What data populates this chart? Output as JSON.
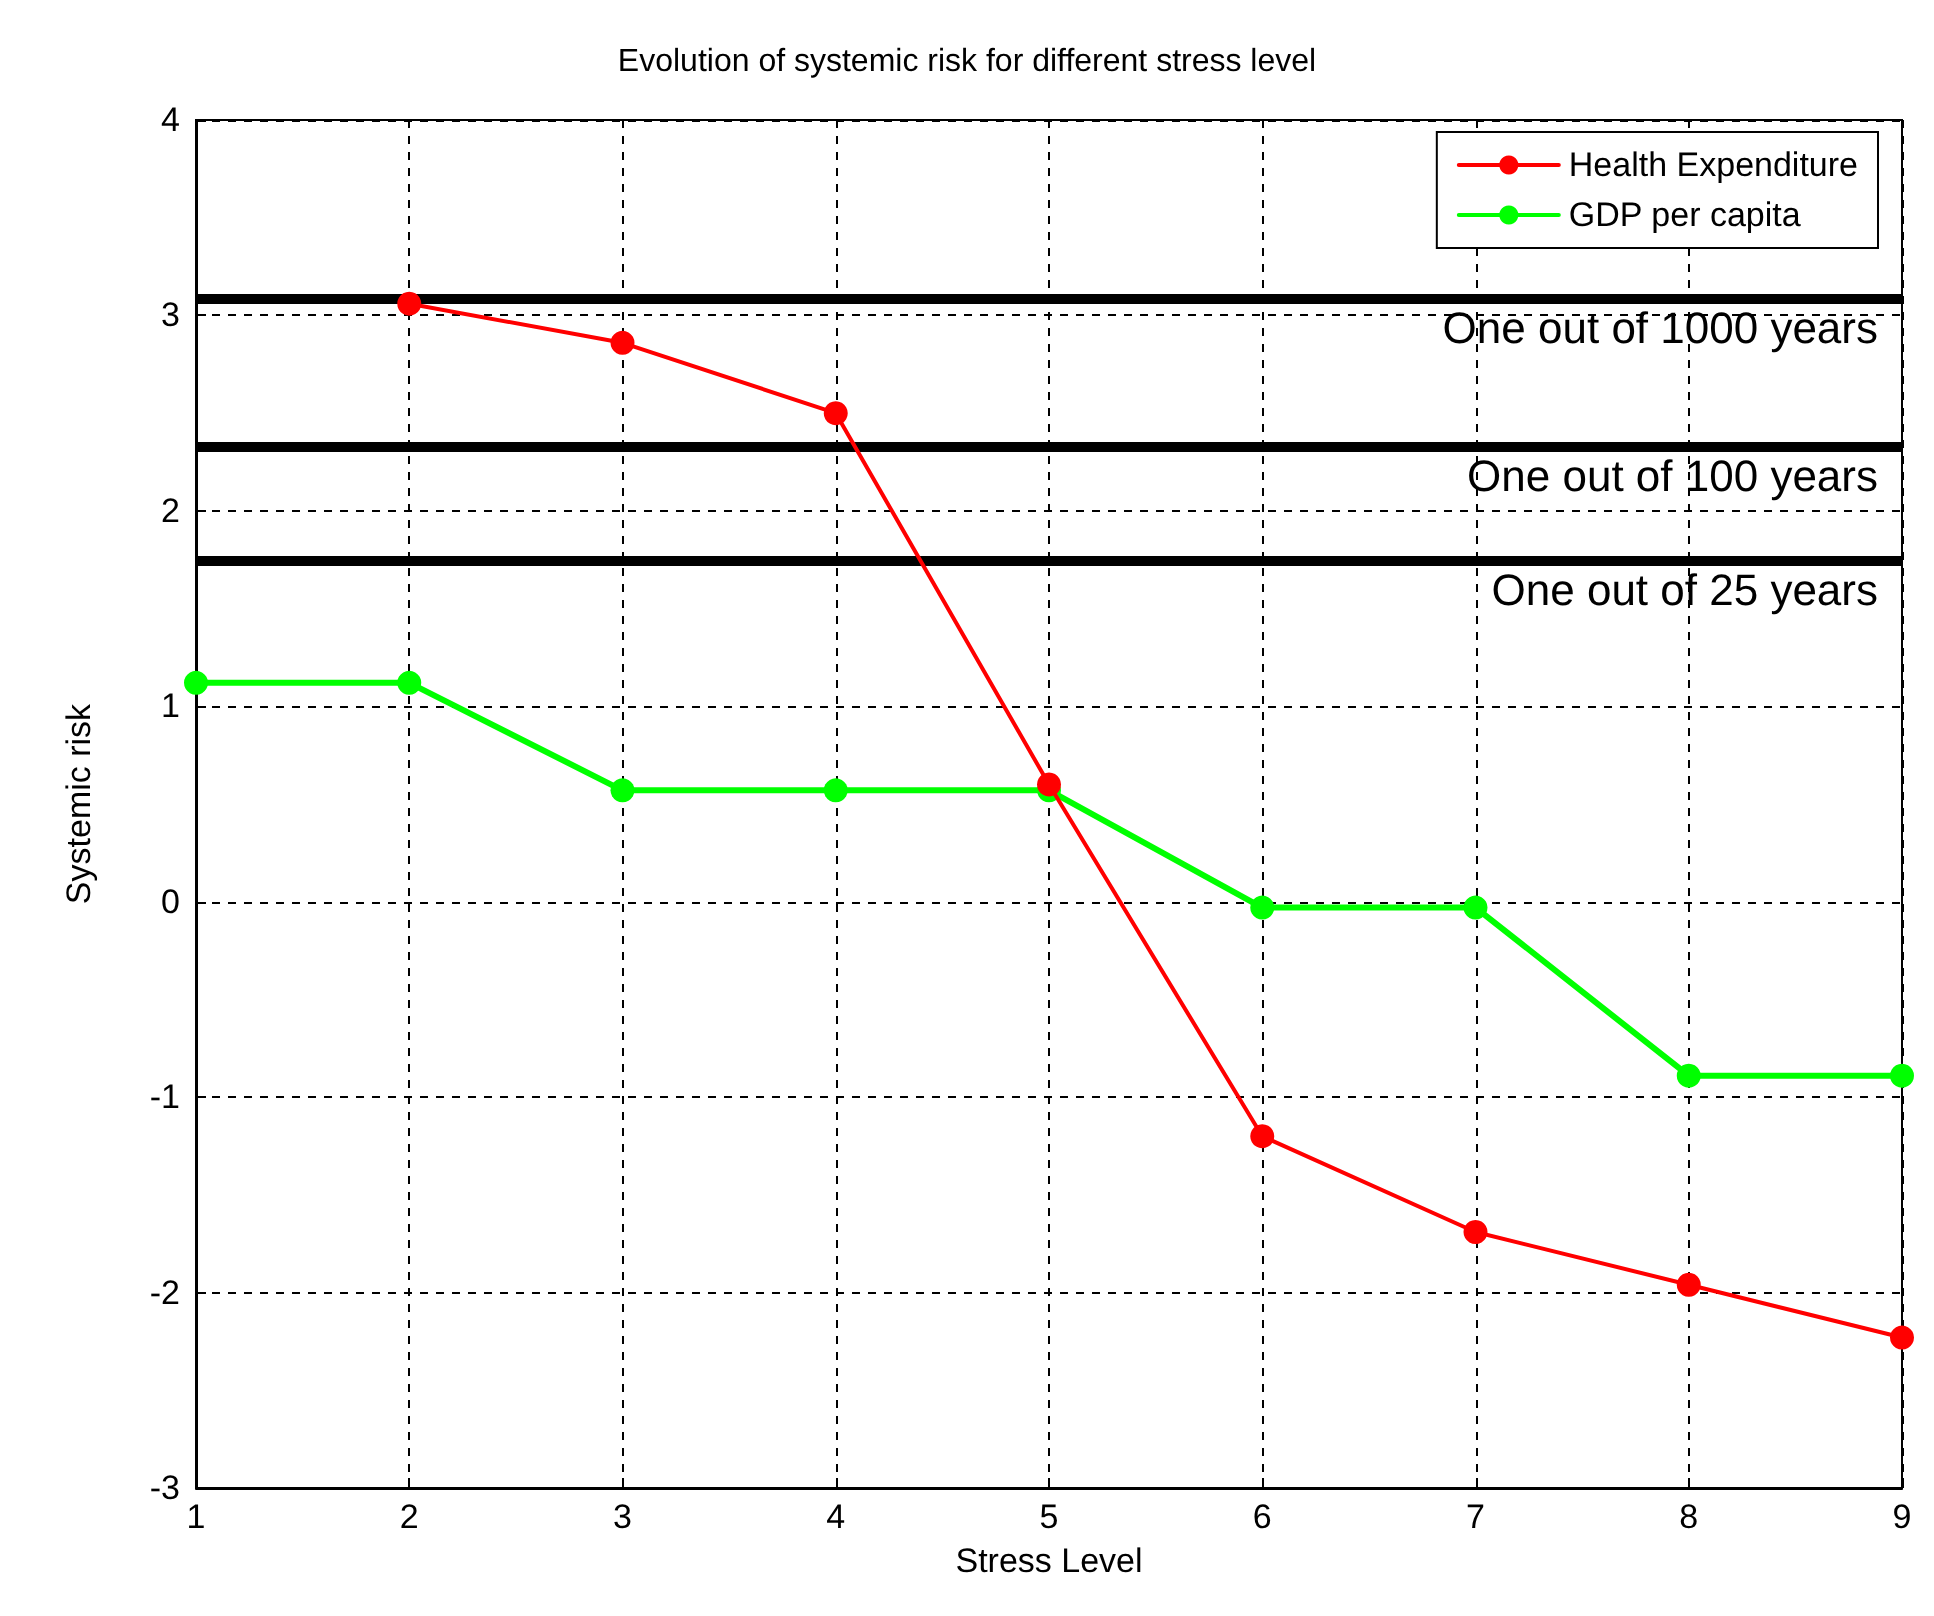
{
  "chart_data": {
    "type": "line",
    "title": "Evolution of systemic risk for different stress level",
    "xlabel": "Stress Level",
    "ylabel": "Systemic risk",
    "x": [
      1,
      2,
      3,
      4,
      5,
      6,
      7,
      8,
      9
    ],
    "series": [
      {
        "name": "Health Expenditure",
        "color": "#ff0000",
        "values": [
          null,
          3.06,
          2.86,
          2.5,
          0.6,
          -1.2,
          -1.69,
          -1.96,
          -2.23
        ]
      },
      {
        "name": "GDP per capita",
        "color": "#00ff00",
        "values": [
          1.12,
          1.12,
          0.57,
          0.57,
          0.57,
          -0.03,
          -0.03,
          -0.89,
          -0.89
        ]
      }
    ],
    "xlim": [
      1,
      9
    ],
    "xticks": [
      1,
      2,
      3,
      4,
      5,
      6,
      7,
      8,
      9
    ],
    "ylim": [
      -3,
      4
    ],
    "yticks": [
      -3,
      -2,
      -1,
      0,
      1,
      2,
      3,
      4
    ],
    "ref_lines": [
      {
        "axis": "y",
        "value": 3.09,
        "label": "One out of 1000 years",
        "color": "#000000"
      },
      {
        "axis": "y",
        "value": 2.33,
        "label": "One out of 100 years",
        "color": "#000000"
      },
      {
        "axis": "y",
        "value": 1.75,
        "label": "One out of 25 years",
        "color": "#000000"
      }
    ],
    "grid": true,
    "legend": "top right",
    "marker": "circle",
    "line_style": "solid"
  }
}
